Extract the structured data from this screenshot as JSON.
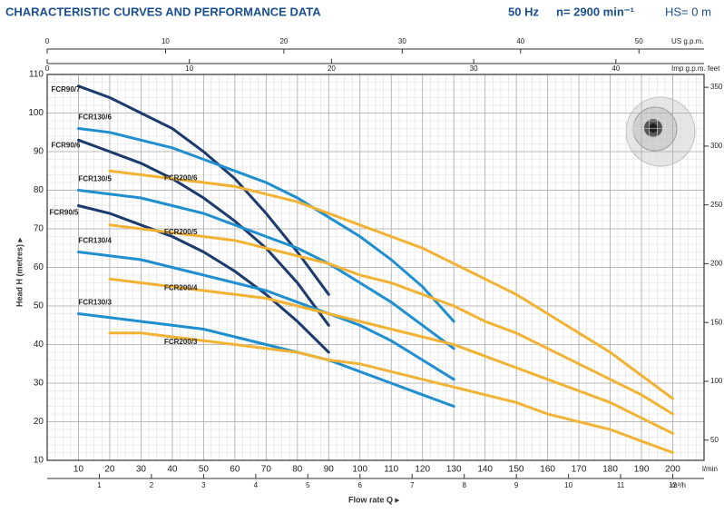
{
  "chart_data": {
    "type": "line",
    "title": "CHARACTERISTIC CURVES AND PERFORMANCE DATA",
    "frequency": "50 Hz",
    "speed": "n= 2900 min⁻¹",
    "suction": "HS= 0 m",
    "ylabel": "Head H (metres) ▸",
    "xlabel": "Flow rate Q ▸",
    "xunit": "l/min",
    "x": [
      10,
      20,
      30,
      40,
      50,
      60,
      70,
      80,
      90,
      100,
      110,
      120,
      130,
      140,
      150,
      160,
      170,
      180,
      190,
      200
    ],
    "xlim": [
      0,
      210
    ],
    "xticks": [
      10,
      20,
      30,
      40,
      50,
      60,
      70,
      80,
      90,
      100,
      110,
      120,
      130,
      140,
      150,
      160,
      170,
      180,
      190,
      200
    ],
    "ylim": [
      10,
      110
    ],
    "yticks": [
      10,
      20,
      30,
      40,
      50,
      60,
      70,
      80,
      90,
      100,
      110
    ],
    "grid": true,
    "x_top_us": {
      "label": "US g.p.m.",
      "lim": [
        0,
        55.5
      ],
      "ticks": [
        0,
        10,
        20,
        30,
        40,
        50
      ]
    },
    "x_top_imp": {
      "label": "Imp g.p.m.",
      "lim": [
        0,
        46.2
      ],
      "ticks": [
        0,
        10,
        20,
        30,
        40
      ]
    },
    "x_bottom_m3h": {
      "label": "m³/h",
      "lim": [
        0,
        12.6
      ],
      "ticks": [
        1,
        2,
        3,
        4,
        5,
        6,
        7,
        8,
        9,
        10,
        11,
        12
      ]
    },
    "y2label": "feet",
    "y2lim": [
      32.8,
      360.9
    ],
    "y2ticks": [
      50,
      100,
      150,
      200,
      250,
      300,
      350
    ],
    "series": [
      {
        "name": "FCR90/7",
        "color": "#1d3a6d",
        "values": [
          107,
          104,
          100,
          96,
          90,
          83,
          74,
          64,
          53,
          null,
          null,
          null,
          null,
          null,
          null,
          null,
          null,
          null,
          null,
          null
        ]
      },
      {
        "name": "FCR90/6",
        "color": "#1d3a6d",
        "values": [
          93,
          90,
          87,
          83,
          78,
          72,
          65,
          56,
          45,
          null,
          null,
          null,
          null,
          null,
          null,
          null,
          null,
          null,
          null,
          null
        ]
      },
      {
        "name": "FCR90/5",
        "color": "#1d3a6d",
        "values": [
          76,
          74,
          71,
          68,
          64,
          59,
          53,
          46,
          38,
          null,
          null,
          null,
          null,
          null,
          null,
          null,
          null,
          null,
          null,
          null
        ]
      },
      {
        "name": "FCR130/6",
        "color": "#1f8fd0",
        "values": [
          96,
          95,
          93,
          91,
          88,
          85,
          82,
          78,
          73,
          68,
          62,
          55,
          46,
          null,
          null,
          null,
          null,
          null,
          null,
          null
        ]
      },
      {
        "name": "FCR130/5",
        "color": "#1f8fd0",
        "values": [
          80,
          79,
          78,
          76,
          74,
          71,
          68,
          65,
          61,
          56,
          51,
          45,
          39,
          null,
          null,
          null,
          null,
          null,
          null,
          null
        ]
      },
      {
        "name": "FCR130/4",
        "color": "#1f8fd0",
        "values": [
          64,
          63,
          62,
          60,
          58,
          56,
          54,
          51,
          48,
          45,
          41,
          36,
          31,
          null,
          null,
          null,
          null,
          null,
          null,
          null
        ]
      },
      {
        "name": "FCR130/3",
        "color": "#1f8fd0",
        "values": [
          48,
          47,
          46,
          45,
          44,
          42,
          40,
          38,
          36,
          33,
          30,
          27,
          24,
          null,
          null,
          null,
          null,
          null,
          null,
          null
        ]
      },
      {
        "name": "FCR200/6",
        "color": "#f2b233",
        "values": [
          null,
          85,
          84,
          83,
          82,
          81,
          79,
          77,
          74,
          71,
          68,
          65,
          61,
          57,
          53,
          48,
          43,
          38,
          32,
          26
        ]
      },
      {
        "name": "FCR200/5",
        "color": "#f2b233",
        "values": [
          null,
          71,
          70,
          69,
          68,
          67,
          65,
          63,
          61,
          58,
          56,
          53,
          50,
          46,
          43,
          39,
          35,
          31,
          27,
          22
        ]
      },
      {
        "name": "FCR200/4",
        "color": "#f2b233",
        "values": [
          null,
          57,
          56,
          55,
          54,
          53,
          52,
          50,
          48,
          46,
          44,
          42,
          40,
          37,
          34,
          31,
          28,
          25,
          21,
          17
        ]
      },
      {
        "name": "FCR200/3",
        "color": "#f2b233",
        "values": [
          null,
          43,
          43,
          42,
          41,
          40,
          39,
          38,
          36,
          35,
          33,
          31,
          29,
          27,
          25,
          22,
          20,
          18,
          15,
          12
        ]
      }
    ]
  }
}
